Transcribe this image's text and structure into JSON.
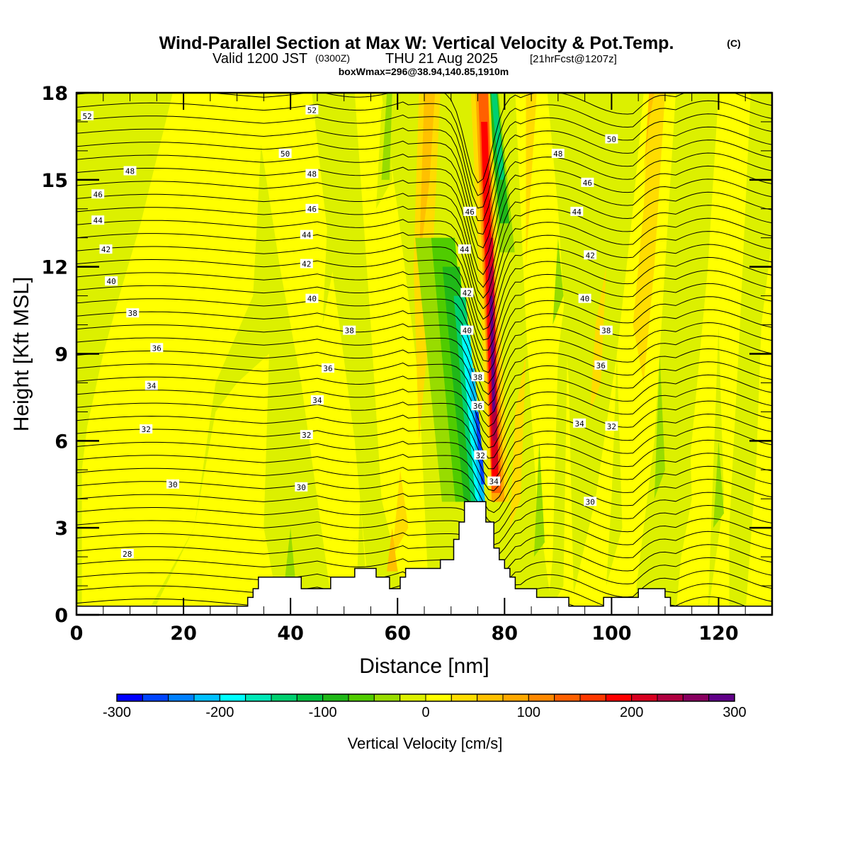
{
  "header": {
    "title": "Wind-Parallel Section at Max W: Vertical Velocity & Pot.Temp.",
    "copyright": "(C)",
    "subtitle_valid": "Valid 1200 JST",
    "subtitle_utc": "(0300Z)",
    "subtitle_date": "THU 21 Aug 2025",
    "subtitle_fcst": "[21hrFcst@1207z]",
    "boxinfo": "boxWmax=296@38.94,140.85,1910m"
  },
  "chart_data": {
    "type": "heatmap",
    "title": "Wind-Parallel Section at Max W: Vertical Velocity & Pot.Temp.",
    "xlabel": "Distance [nm]",
    "ylabel": "Height [Kft MSL]",
    "xlim": [
      0,
      130
    ],
    "ylim": [
      0,
      18
    ],
    "x_ticks": [
      0,
      20,
      40,
      60,
      80,
      100,
      120
    ],
    "x_tick_labels": [
      "0",
      "20",
      "40",
      "60",
      "80",
      "100",
      "120"
    ],
    "y_ticks": [
      0,
      3,
      6,
      9,
      12,
      15,
      18
    ],
    "y_tick_labels": [
      "0",
      "3",
      "6",
      "9",
      "12",
      "15",
      "18"
    ],
    "x_minor_step": 5,
    "y_minor_step": 1,
    "colorbar": {
      "label": "Vertical Velocity [cm/s]",
      "levels": [
        -300,
        -275,
        -250,
        -225,
        -200,
        -175,
        -150,
        -125,
        -100,
        -75,
        -50,
        -25,
        0,
        25,
        50,
        75,
        100,
        125,
        150,
        175,
        200,
        225,
        250,
        275,
        300
      ],
      "tick_values": [
        -300,
        -200,
        -100,
        0,
        100,
        200,
        300
      ],
      "tick_labels": [
        "-300",
        "-200",
        "-100",
        "0",
        "100",
        "200",
        "300"
      ],
      "colors": [
        "#0000ff",
        "#0044ff",
        "#0080ff",
        "#00c0ff",
        "#00ffff",
        "#00e8b8",
        "#00d070",
        "#00c040",
        "#20b818",
        "#50cc00",
        "#98dc00",
        "#dcf000",
        "#ffff00",
        "#ffdc00",
        "#ffc000",
        "#ffa800",
        "#ff8800",
        "#ff6000",
        "#ff3800",
        "#ff0000",
        "#d80020",
        "#b00040",
        "#880060",
        "#600088"
      ],
      "placement": "bottom"
    },
    "vertical_velocity_features": [
      {
        "name": "main updraft",
        "x_nm": 78.5,
        "height_kft_range": [
          4,
          18
        ],
        "max_cm_s": 296
      },
      {
        "name": "main downdraft",
        "x_nm": 75,
        "height_kft_range": [
          3.8,
          13
        ],
        "min_cm_s": -275
      },
      {
        "name": "upper downdraft",
        "x_nm": 79,
        "height_kft_range": [
          13,
          18
        ],
        "min_cm_s": -175
      }
    ],
    "theta_contours": {
      "interval_K": 1,
      "labelled_levels": [
        28,
        30,
        32,
        34,
        36,
        38,
        40,
        42,
        44,
        46,
        48,
        50,
        52
      ],
      "labels": [
        {
          "text": "52",
          "x": 2,
          "y": 17.2
        },
        {
          "text": "48",
          "x": 10,
          "y": 15.3
        },
        {
          "text": "46",
          "x": 4,
          "y": 14.5
        },
        {
          "text": "44",
          "x": 4,
          "y": 13.6
        },
        {
          "text": "42",
          "x": 5.5,
          "y": 12.6
        },
        {
          "text": "40",
          "x": 6.5,
          "y": 11.5
        },
        {
          "text": "38",
          "x": 10.5,
          "y": 10.4
        },
        {
          "text": "36",
          "x": 15,
          "y": 9.2
        },
        {
          "text": "34",
          "x": 14,
          "y": 7.9
        },
        {
          "text": "32",
          "x": 13,
          "y": 6.4
        },
        {
          "text": "30",
          "x": 18,
          "y": 4.5
        },
        {
          "text": "28",
          "x": 9.5,
          "y": 2.1
        },
        {
          "text": "52",
          "x": 44,
          "y": 17.4
        },
        {
          "text": "50",
          "x": 39,
          "y": 15.9
        },
        {
          "text": "48",
          "x": 44,
          "y": 15.2
        },
        {
          "text": "46",
          "x": 44,
          "y": 14.0
        },
        {
          "text": "44",
          "x": 43,
          "y": 13.1
        },
        {
          "text": "42",
          "x": 43,
          "y": 12.1
        },
        {
          "text": "40",
          "x": 44,
          "y": 10.9
        },
        {
          "text": "38",
          "x": 51,
          "y": 9.8
        },
        {
          "text": "36",
          "x": 47,
          "y": 8.5
        },
        {
          "text": "34",
          "x": 45,
          "y": 7.4
        },
        {
          "text": "32",
          "x": 43,
          "y": 6.2
        },
        {
          "text": "30",
          "x": 42,
          "y": 4.4
        },
        {
          "text": "46",
          "x": 73.5,
          "y": 13.9
        },
        {
          "text": "44",
          "x": 72.5,
          "y": 12.6
        },
        {
          "text": "42",
          "x": 73,
          "y": 11.1
        },
        {
          "text": "40",
          "x": 73,
          "y": 9.8
        },
        {
          "text": "38",
          "x": 75,
          "y": 8.2
        },
        {
          "text": "36",
          "x": 75,
          "y": 7.2
        },
        {
          "text": "32",
          "x": 75.5,
          "y": 5.5
        },
        {
          "text": "34",
          "x": 78,
          "y": 4.6
        },
        {
          "text": "48",
          "x": 90,
          "y": 15.9
        },
        {
          "text": "50",
          "x": 100,
          "y": 16.4
        },
        {
          "text": "46",
          "x": 95.5,
          "y": 14.9
        },
        {
          "text": "44",
          "x": 93.5,
          "y": 13.9
        },
        {
          "text": "42",
          "x": 96,
          "y": 12.4
        },
        {
          "text": "40",
          "x": 95,
          "y": 10.9
        },
        {
          "text": "38",
          "x": 99,
          "y": 9.8
        },
        {
          "text": "36",
          "x": 98,
          "y": 8.6
        },
        {
          "text": "34",
          "x": 94,
          "y": 6.6
        },
        {
          "text": "32",
          "x": 100,
          "y": 6.5
        },
        {
          "text": "30",
          "x": 96,
          "y": 3.9
        }
      ]
    },
    "terrain_kft": [
      [
        0,
        0.3
      ],
      [
        32,
        0.3
      ],
      [
        32,
        0.6
      ],
      [
        33,
        0.6
      ],
      [
        33,
        0.9
      ],
      [
        34,
        0.9
      ],
      [
        34,
        1.3
      ],
      [
        42,
        1.3
      ],
      [
        42,
        0.9
      ],
      [
        47.5,
        0.9
      ],
      [
        47.5,
        1.3
      ],
      [
        52,
        1.3
      ],
      [
        52,
        1.6
      ],
      [
        56,
        1.6
      ],
      [
        56,
        1.3
      ],
      [
        58.5,
        1.3
      ],
      [
        58.5,
        0.9
      ],
      [
        60.5,
        0.9
      ],
      [
        60.5,
        1.3
      ],
      [
        61.5,
        1.3
      ],
      [
        61.5,
        1.6
      ],
      [
        68,
        1.6
      ],
      [
        68,
        1.9
      ],
      [
        70.5,
        1.9
      ],
      [
        70.5,
        2.6
      ],
      [
        71.5,
        2.6
      ],
      [
        71.5,
        3.2
      ],
      [
        72.5,
        3.2
      ],
      [
        72.5,
        3.9
      ],
      [
        76.5,
        3.9
      ],
      [
        76.5,
        3.2
      ],
      [
        78,
        3.2
      ],
      [
        78,
        2.3
      ],
      [
        79,
        2.3
      ],
      [
        79,
        1.9
      ],
      [
        80,
        1.9
      ],
      [
        80,
        1.6
      ],
      [
        81,
        1.6
      ],
      [
        81,
        1.3
      ],
      [
        82,
        1.3
      ],
      [
        82,
        0.9
      ],
      [
        86,
        0.9
      ],
      [
        86,
        0.6
      ],
      [
        92,
        0.6
      ],
      [
        92,
        0.3
      ],
      [
        98.5,
        0.3
      ],
      [
        98.5,
        0.6
      ],
      [
        105,
        0.6
      ],
      [
        105,
        0.9
      ],
      [
        110,
        0.9
      ],
      [
        110,
        0.6
      ],
      [
        111,
        0.6
      ],
      [
        111,
        0.3
      ],
      [
        130,
        0.3
      ]
    ]
  }
}
